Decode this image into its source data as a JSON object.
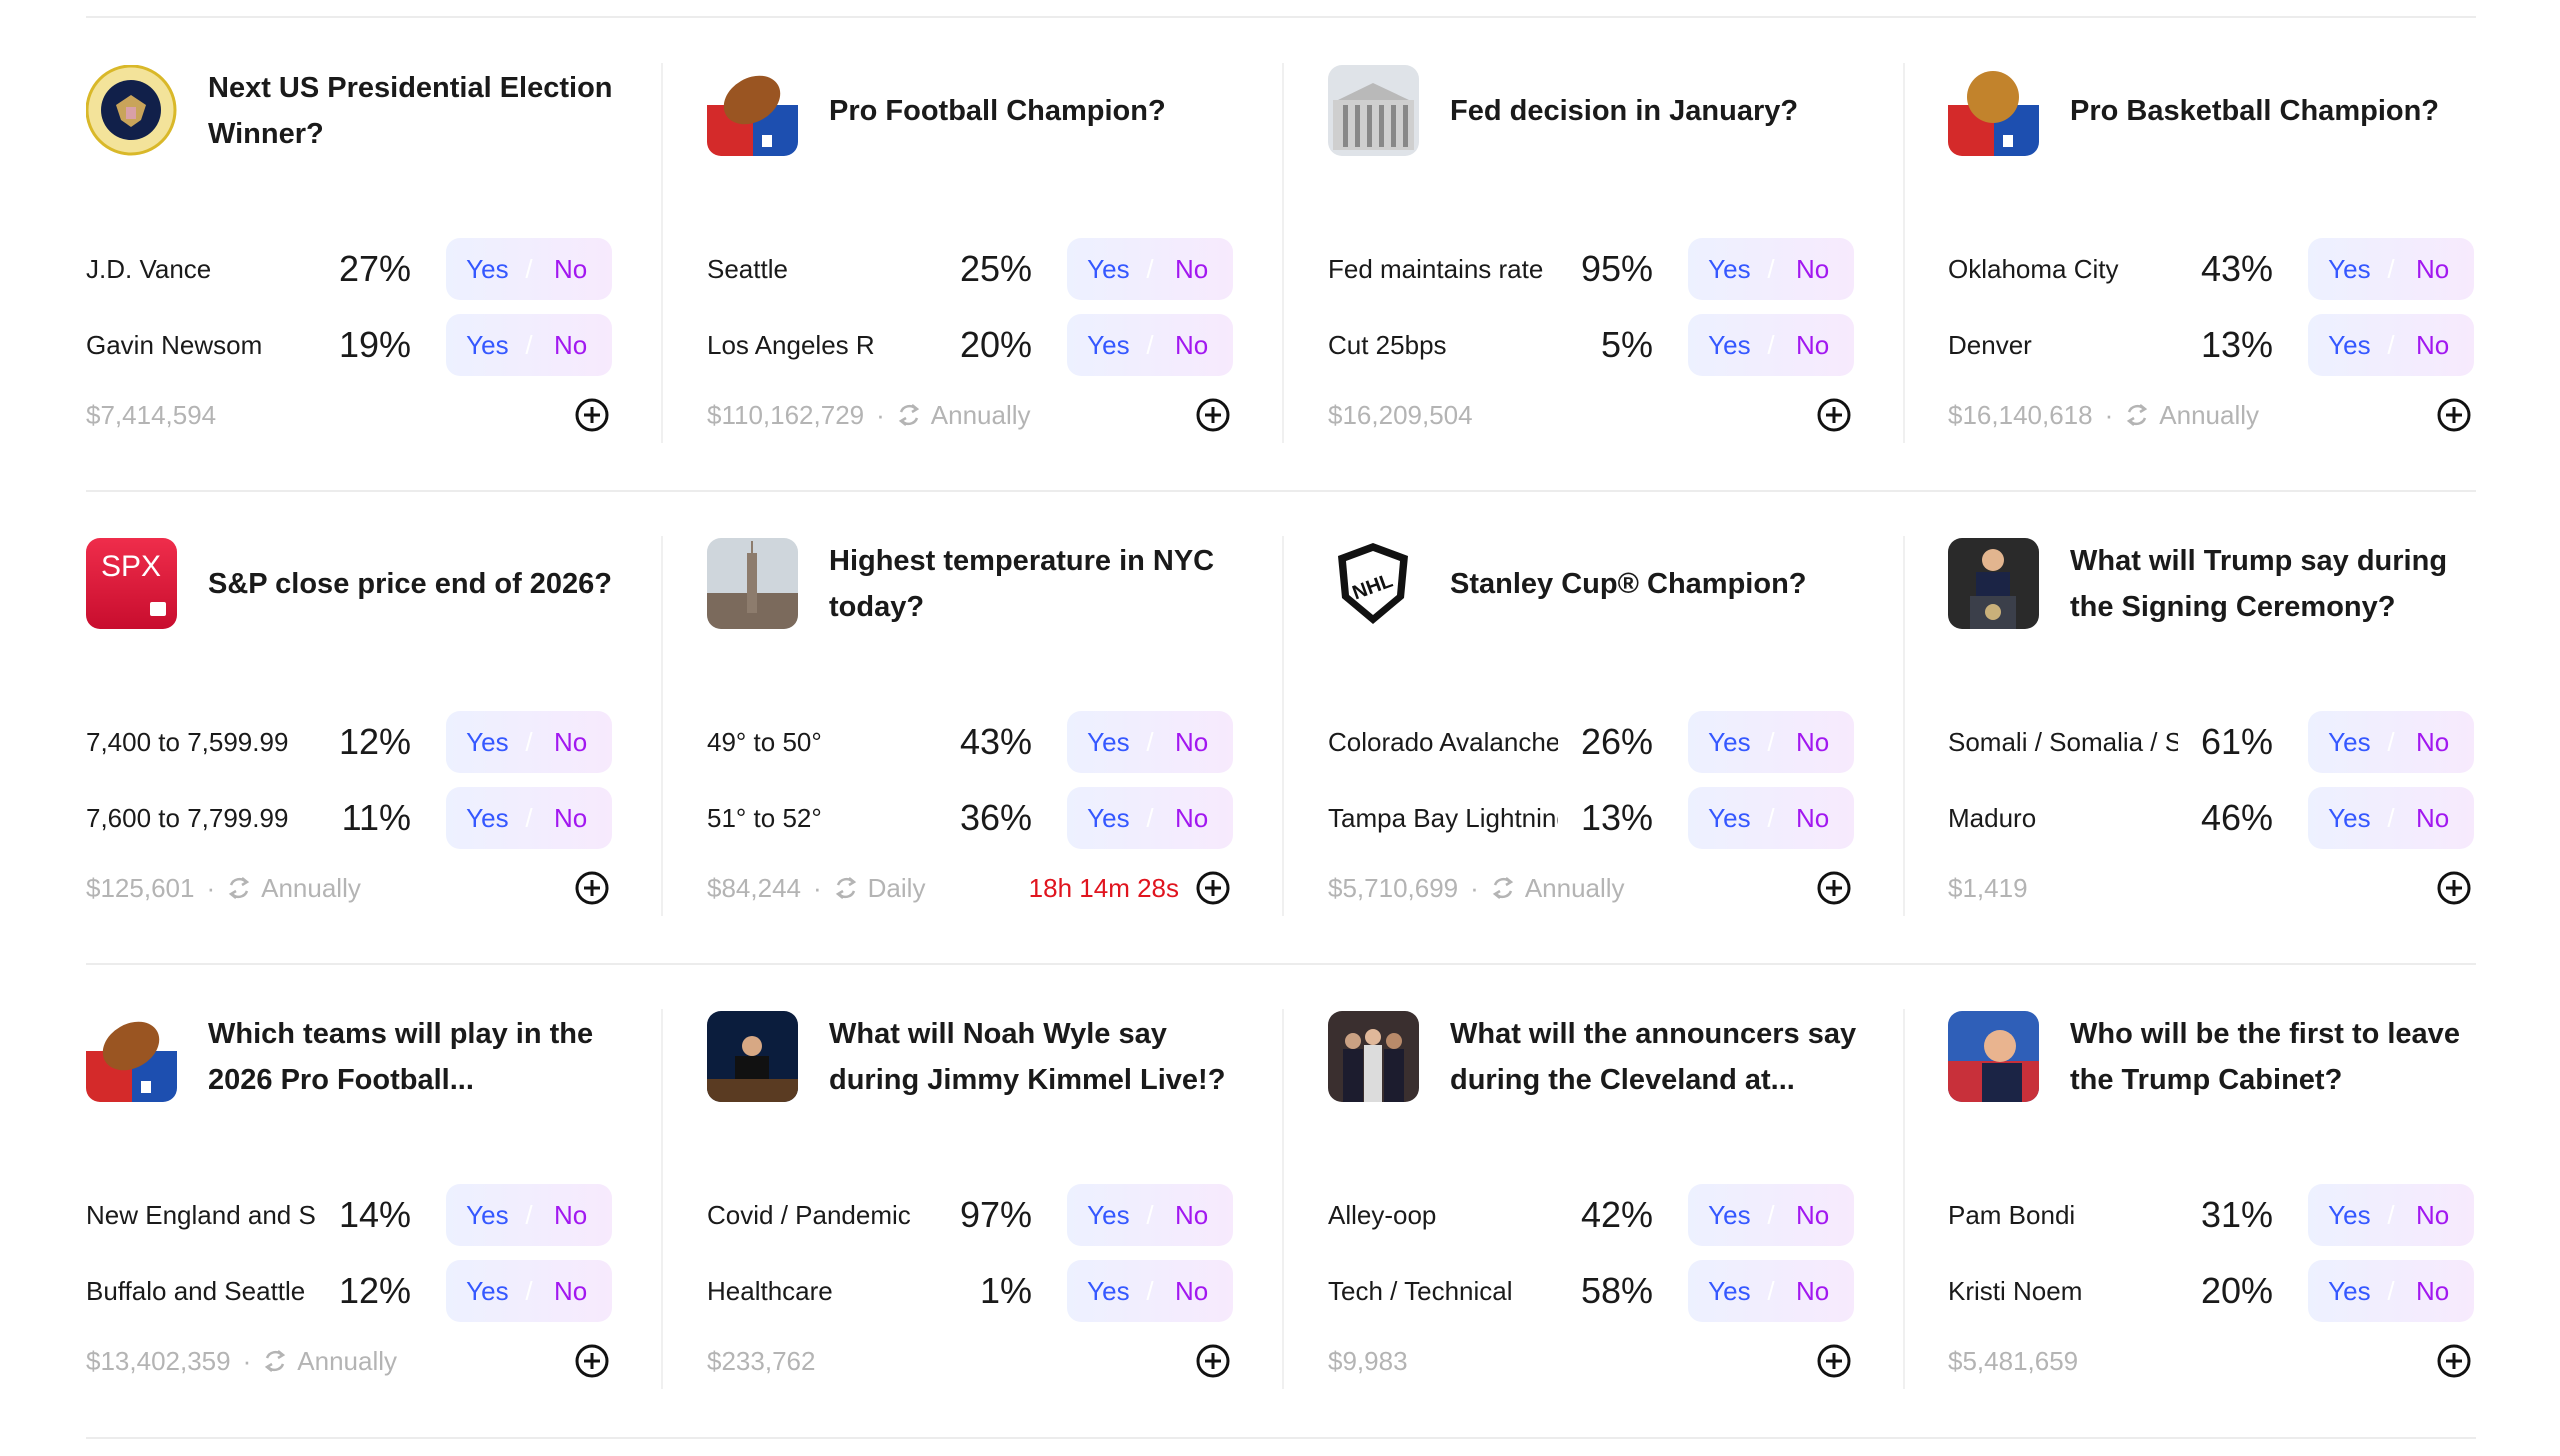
{
  "colors": {
    "yes": "#3558ff",
    "no": "#a218f0",
    "timer": "#e0141e"
  },
  "cards": [
    {
      "icon": "presidential-seal-icon",
      "title": "Next US Presidential Election Winner?",
      "outcomes": [
        {
          "label": "J.D. Vance",
          "pct": "27%",
          "yes": "Yes",
          "no": "No"
        },
        {
          "label": "Gavin Newsom",
          "pct": "19%",
          "yes": "Yes",
          "no": "No"
        }
      ],
      "volume": "$7,414,594"
    },
    {
      "icon": "football-trophy-icon",
      "title": "Pro Football Champion?",
      "outcomes": [
        {
          "label": "Seattle",
          "pct": "25%",
          "yes": "Yes",
          "no": "No"
        },
        {
          "label": "Los Angeles R",
          "pct": "20%",
          "yes": "Yes",
          "no": "No"
        }
      ],
      "volume": "$110,162,729",
      "recurrence": "Annually"
    },
    {
      "icon": "federal-reserve-building-icon",
      "title": "Fed decision in January?",
      "outcomes": [
        {
          "label": "Fed maintains rate",
          "pct": "95%",
          "yes": "Yes",
          "no": "No"
        },
        {
          "label": "Cut 25bps",
          "pct": "5%",
          "yes": "Yes",
          "no": "No"
        }
      ],
      "volume": "$16,209,504"
    },
    {
      "icon": "basketball-trophy-icon",
      "title": "Pro Basketball Champion?",
      "outcomes": [
        {
          "label": "Oklahoma City",
          "pct": "43%",
          "yes": "Yes",
          "no": "No"
        },
        {
          "label": "Denver",
          "pct": "13%",
          "yes": "Yes",
          "no": "No"
        }
      ],
      "volume": "$16,140,618",
      "recurrence": "Annually"
    },
    {
      "icon": "spx-calendar-icon",
      "icon_text": "SPX",
      "title": "S&P close price end of 2026?",
      "outcomes": [
        {
          "label": "7,400 to 7,599.99",
          "pct": "12%",
          "yes": "Yes",
          "no": "No"
        },
        {
          "label": "7,600 to 7,799.99",
          "pct": "11%",
          "yes": "Yes",
          "no": "No"
        }
      ],
      "volume": "$125,601",
      "recurrence": "Annually"
    },
    {
      "icon": "nyc-skyline-icon",
      "title": "Highest temperature in NYC today?",
      "outcomes": [
        {
          "label": "49° to 50°",
          "pct": "43%",
          "yes": "Yes",
          "no": "No"
        },
        {
          "label": "51° to 52°",
          "pct": "36%",
          "yes": "Yes",
          "no": "No"
        }
      ],
      "volume": "$84,244",
      "recurrence": "Daily",
      "countdown": "18h 14m 28s"
    },
    {
      "icon": "nhl-shield-icon",
      "title": "Stanley Cup® Champion?",
      "outcomes": [
        {
          "label": "Colorado Avalanche",
          "pct": "26%",
          "yes": "Yes",
          "no": "No"
        },
        {
          "label": "Tampa Bay Lightning",
          "pct": "13%",
          "yes": "Yes",
          "no": "No"
        }
      ],
      "volume": "$5,710,699",
      "recurrence": "Annually"
    },
    {
      "icon": "trump-podium-photo-icon",
      "title": "What will Trump say during the Signing Ceremony?",
      "outcomes": [
        {
          "label": "Somali / Somalia / Somalis",
          "pct": "61%",
          "yes": "Yes",
          "no": "No"
        },
        {
          "label": "Maduro",
          "pct": "46%",
          "yes": "Yes",
          "no": "No"
        }
      ],
      "volume": "$1,419"
    },
    {
      "icon": "football-trophy-icon",
      "title": "Which teams will play in the 2026 Pro Football...",
      "outcomes": [
        {
          "label": "New England and Seattle",
          "pct": "14%",
          "yes": "Yes",
          "no": "No"
        },
        {
          "label": "Buffalo and Seattle",
          "pct": "12%",
          "yes": "Yes",
          "no": "No"
        }
      ],
      "volume": "$13,402,359",
      "recurrence": "Annually"
    },
    {
      "icon": "kimmel-show-photo-icon",
      "title": "What will Noah Wyle say during Jimmy Kimmel Live!?",
      "outcomes": [
        {
          "label": "Covid / Pandemic",
          "pct": "97%",
          "yes": "Yes",
          "no": "No"
        },
        {
          "label": "Healthcare",
          "pct": "1%",
          "yes": "Yes",
          "no": "No"
        }
      ],
      "volume": "$233,762"
    },
    {
      "icon": "announcers-photo-icon",
      "title": "What will the announcers say during the Cleveland at...",
      "outcomes": [
        {
          "label": "Alley-oop",
          "pct": "42%",
          "yes": "Yes",
          "no": "No"
        },
        {
          "label": "Tech / Technical",
          "pct": "58%",
          "yes": "Yes",
          "no": "No"
        }
      ],
      "volume": "$9,983"
    },
    {
      "icon": "trump-flag-photo-icon",
      "title": "Who will be the first to leave the Trump Cabinet?",
      "outcomes": [
        {
          "label": "Pam Bondi",
          "pct": "31%",
          "yes": "Yes",
          "no": "No"
        },
        {
          "label": "Kristi Noem",
          "pct": "20%",
          "yes": "Yes",
          "no": "No"
        }
      ],
      "volume": "$5,481,659"
    }
  ]
}
